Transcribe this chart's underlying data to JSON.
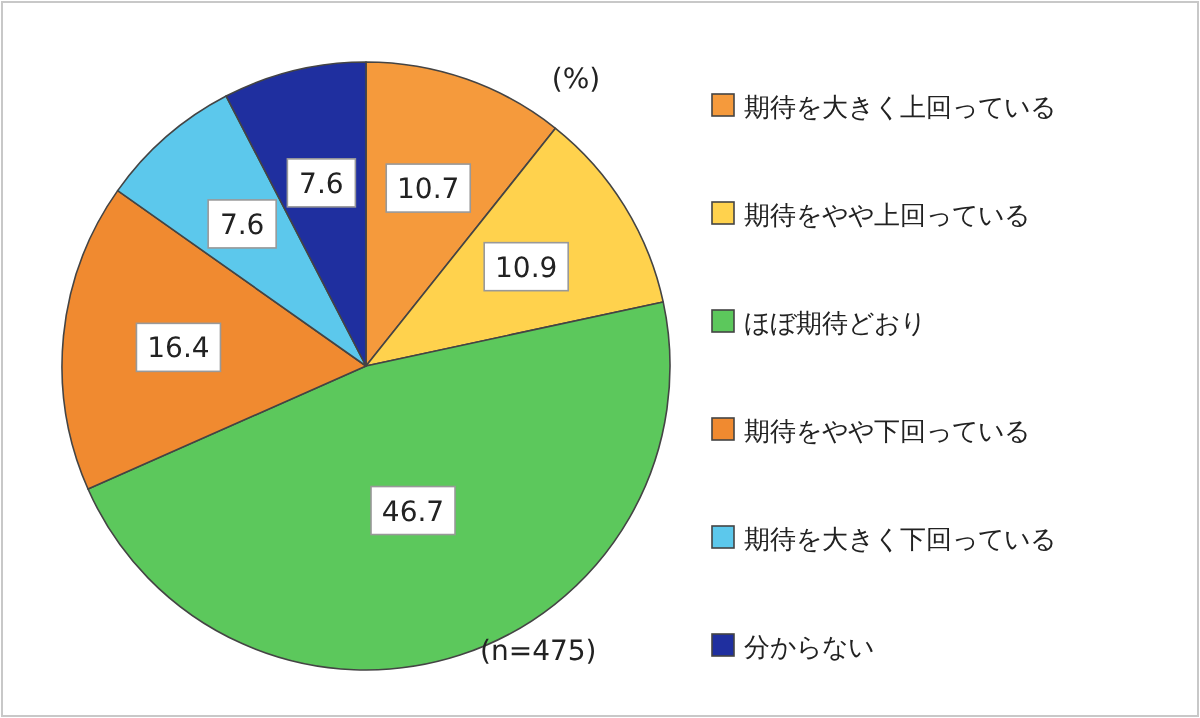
{
  "chart_data": {
    "type": "pie",
    "categories": [
      "期待を大きく上回っている",
      "期待をやや上回っている",
      "ほぼ期待どおり",
      "期待をやや下回っている",
      "期待を大きく下回っている",
      "分からない"
    ],
    "values": [
      10.7,
      10.9,
      46.7,
      16.4,
      7.6,
      7.6
    ],
    "colors": [
      "#f59a3c",
      "#ffd24d",
      "#5cc85c",
      "#f08a30",
      "#5cc8ec",
      "#1f2f9f"
    ],
    "data_labels": true,
    "legend": "right",
    "annotations": [
      "(%)",
      "(n=475)"
    ]
  }
}
